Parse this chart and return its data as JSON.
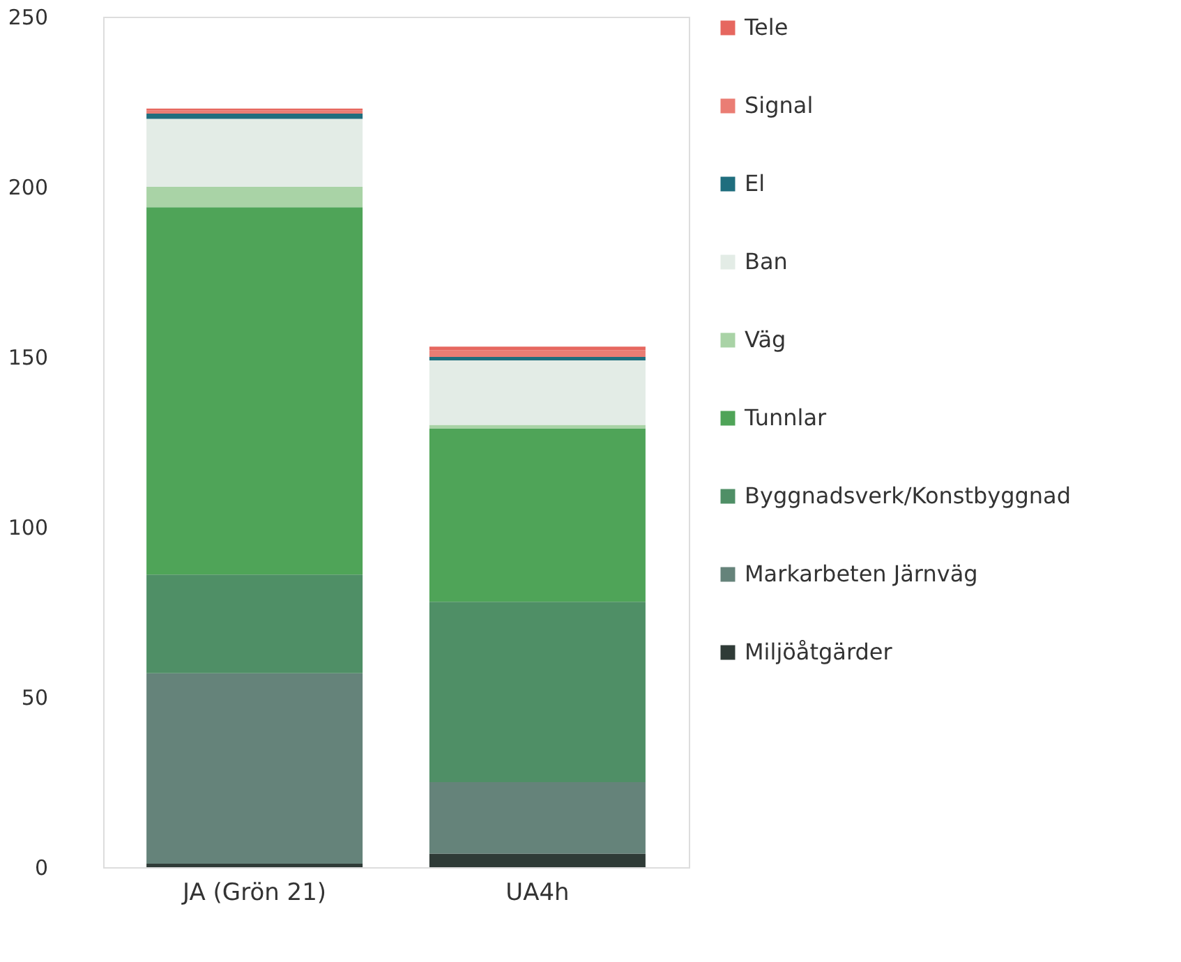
{
  "chart_data": {
    "type": "bar",
    "stacked": true,
    "categories": [
      "JA (Grön 21)",
      "UA4h"
    ],
    "series": [
      {
        "name": "Miljöåtgärder",
        "color": "#2f3b37",
        "values": [
          1,
          4
        ]
      },
      {
        "name": "Markarbeten Järnväg",
        "color": "#65837a",
        "values": [
          56,
          21
        ]
      },
      {
        "name": "Byggnadsverk/Konstbyggnad",
        "color": "#4f8f66",
        "values": [
          29,
          53
        ]
      },
      {
        "name": "Tunnlar",
        "color": "#4fa458",
        "values": [
          108,
          51
        ]
      },
      {
        "name": "Väg",
        "color": "#a9d3a6",
        "values": [
          6,
          1
        ]
      },
      {
        "name": "Ban",
        "color": "#e3ece6",
        "values": [
          20,
          19
        ]
      },
      {
        "name": "El",
        "color": "#1f6e7e",
        "values": [
          1.5,
          1
        ]
      },
      {
        "name": "Signal",
        "color": "#ea7d74",
        "values": [
          1,
          2
        ]
      },
      {
        "name": "Tele",
        "color": "#e6675f",
        "values": [
          0.5,
          1
        ]
      }
    ],
    "ylim": [
      0,
      250
    ],
    "yticks": [
      0,
      50,
      100,
      150,
      200,
      250
    ],
    "grid": false,
    "legend": "right"
  }
}
